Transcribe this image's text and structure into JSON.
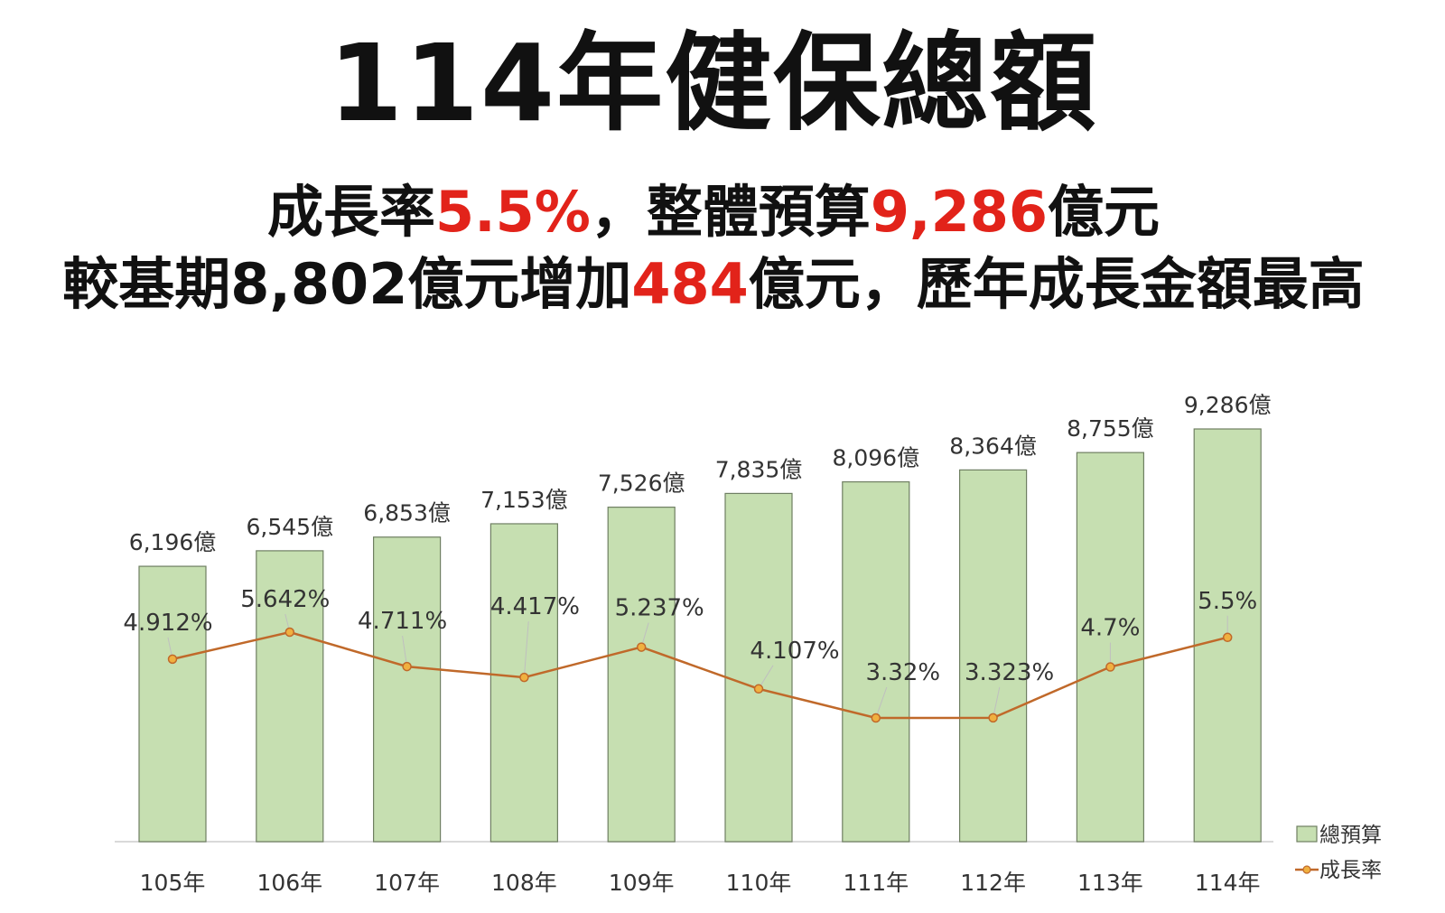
{
  "header": {
    "title": "114年健保總額",
    "line1": {
      "pre": "成長率",
      "rate": "5.5%",
      "mid": "，整體預算",
      "budget": "9,286",
      "post": "億元"
    },
    "line2": {
      "pre": "較基期8,802億元增加",
      "increase": "484",
      "post": "億元，歷年成長金額最高"
    }
  },
  "chart_data": {
    "type": "bar+line",
    "categories": [
      "105年",
      "106年",
      "107年",
      "108年",
      "109年",
      "110年",
      "111年",
      "112年",
      "113年",
      "114年"
    ],
    "series": [
      {
        "name": "總預算",
        "type": "bar",
        "values": [
          6196,
          6545,
          6853,
          7153,
          7526,
          7835,
          8096,
          8364,
          8755,
          9286
        ],
        "labels": [
          "6,196億",
          "6,545億",
          "6,853億",
          "7,153億",
          "7,526億",
          "7,835億",
          "8,096億",
          "8,364億",
          "8,755億",
          "9,286億"
        ],
        "color": "#c6dfb1",
        "stroke": "#6f7f62"
      },
      {
        "name": "成長率",
        "type": "line",
        "values": [
          4.912,
          5.642,
          4.711,
          4.417,
          5.237,
          4.107,
          3.32,
          3.323,
          4.7,
          5.5
        ],
        "labels": [
          "4.912%",
          "5.642%",
          "4.711%",
          "4.417%",
          "5.237%",
          "4.107%",
          "3.32%",
          "3.323%",
          "4.7%",
          "5.5%"
        ],
        "color": "#c0692a",
        "marker_color": "#f0b040"
      }
    ],
    "y_bar_range": [
      0,
      10000
    ],
    "y_line_range": [
      0,
      10
    ],
    "grid": false,
    "legend": "bottom-right"
  }
}
